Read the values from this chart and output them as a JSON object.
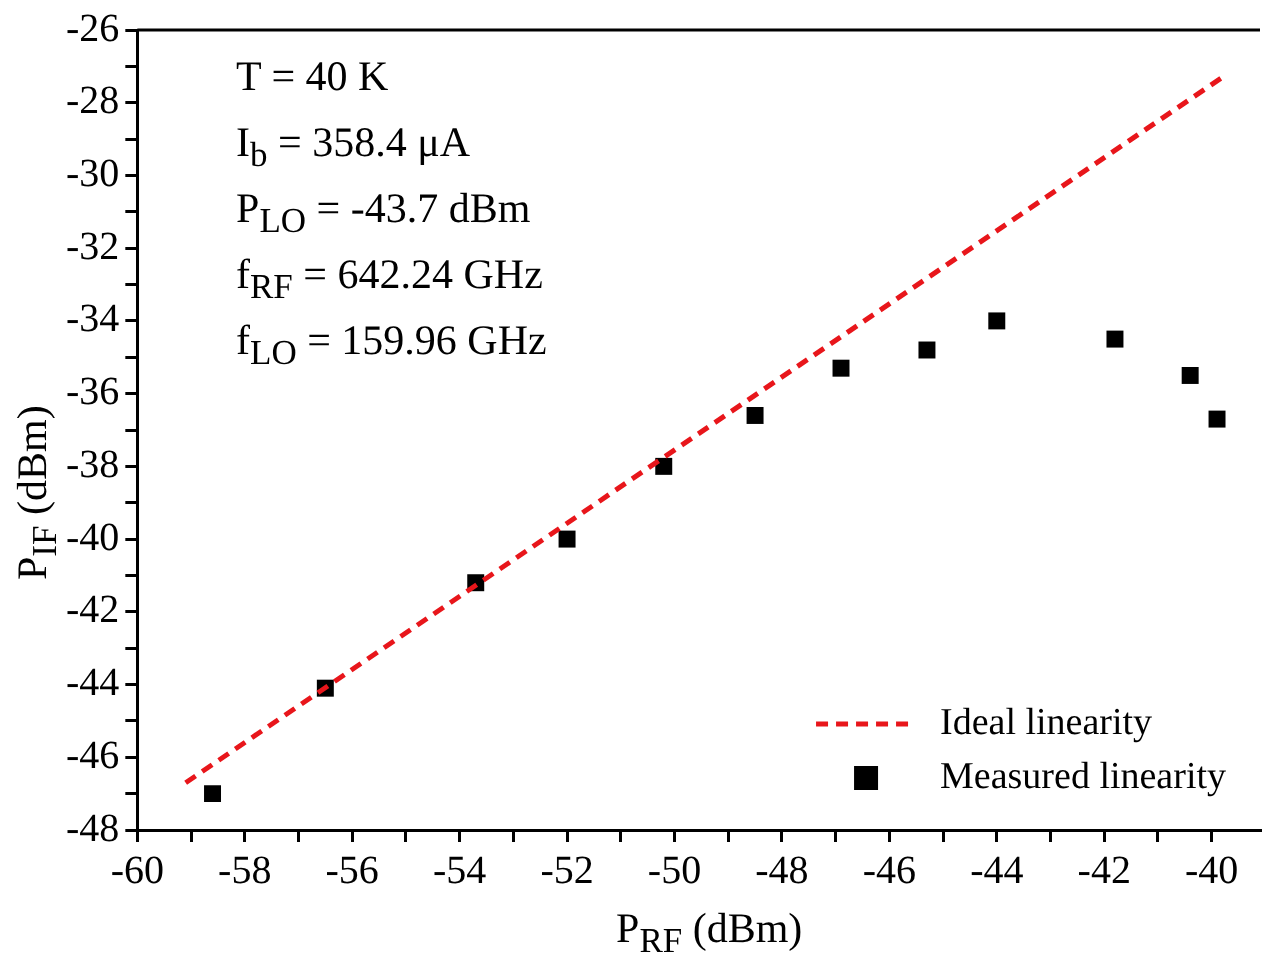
{
  "chart_data": {
    "type": "scatter",
    "xlabel": "P$_{RF}$ (dBm)",
    "ylabel": "P$_{IF}$ (dBm)",
    "annotations": [
      "T = 40 K",
      "I$_{b}$ = 358.4 μA",
      "P$_{LO}$ = -43.7 dBm",
      "f$_{RF}$ = 642.24 GHz",
      "f$_{LO}$ = 159.96 GHz"
    ],
    "series": [
      {
        "name": "Ideal linearity",
        "type": "line",
        "color": "#e8161b",
        "line_style": "dashed",
        "marker": "none",
        "x": [
          -59.1,
          -39.8
        ],
        "values": [
          -46.7,
          -27.3
        ]
      },
      {
        "name": "Measured linearity",
        "color": "#000000",
        "marker": "square",
        "x": [
          -58.6,
          -56.5,
          -53.7,
          -52.0,
          -50.2,
          -48.5,
          -46.9,
          -45.3,
          -44.0,
          -41.8,
          -40.4,
          -39.9
        ],
        "values": [
          -47.0,
          -44.1,
          -41.2,
          -40.0,
          -38.0,
          -36.6,
          -35.3,
          -34.8,
          -34.0,
          -34.5,
          -35.5,
          -36.7
        ]
      }
    ],
    "xlim": [
      -60,
      -39.1
    ],
    "ylim": [
      -48,
      -26
    ],
    "xticks": [
      -60,
      {
        "value": -59,
        "label": null
      },
      -58,
      {
        "value": -57,
        "label": null
      },
      -56,
      {
        "value": -55,
        "label": null
      },
      -54,
      {
        "value": -53,
        "label": null
      },
      -52,
      {
        "value": -51,
        "label": null
      },
      -50,
      {
        "value": -49,
        "label": null
      },
      -48,
      {
        "value": -47,
        "label": null
      },
      -46,
      {
        "value": -45,
        "label": null
      },
      -44,
      {
        "value": -43,
        "label": null
      },
      -42,
      {
        "value": -41,
        "label": null
      },
      -40
    ],
    "yticks": [
      -48,
      {
        "value": -47,
        "label": null
      },
      -46,
      {
        "value": -45,
        "label": null
      },
      -44,
      {
        "value": -43,
        "label": null
      },
      -42,
      {
        "value": -41,
        "label": null
      },
      -40,
      {
        "value": -39,
        "label": null
      },
      -38,
      {
        "value": -37,
        "label": null
      },
      -36,
      {
        "value": -35,
        "label": null
      },
      -34,
      {
        "value": -33,
        "label": null
      },
      -32,
      {
        "value": -31,
        "label": null
      },
      -30,
      {
        "value": -29,
        "label": null
      },
      -28,
      {
        "value": -27,
        "label": null
      },
      -26
    ],
    "grid": false,
    "legend": "bottom right"
  }
}
